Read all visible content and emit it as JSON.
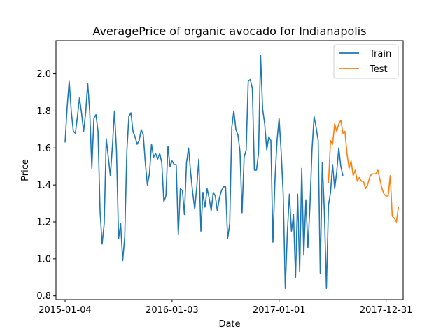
{
  "chart_data": {
    "type": "line",
    "title": "AveragePrice of organic avocado for Indianapolis",
    "xlabel": "Date",
    "ylabel": "Price",
    "xlim": [
      "2014-12-04",
      "2018-02-27"
    ],
    "ylim": [
      0.78,
      2.18
    ],
    "x_ticks": [
      "2015-01-04",
      "2016-01-03",
      "2017-01-01",
      "2017-12-31"
    ],
    "y_ticks": [
      0.8,
      1.0,
      1.2,
      1.4,
      1.6,
      1.8,
      2.0
    ],
    "y_tick_labels": [
      "0.8",
      "1.0",
      "1.2",
      "1.4",
      "1.6",
      "1.8",
      "2.0"
    ],
    "legend_position": "top-right",
    "grid": false,
    "series": [
      {
        "name": "Train",
        "color": "#1f77b4",
        "start": "2015-01-04",
        "freq": "weekly",
        "values": [
          1.63,
          1.82,
          1.96,
          1.8,
          1.69,
          1.68,
          1.77,
          1.87,
          1.79,
          1.69,
          1.79,
          1.95,
          1.79,
          1.49,
          1.76,
          1.78,
          1.69,
          1.26,
          1.08,
          1.19,
          1.65,
          1.55,
          1.45,
          1.61,
          1.8,
          1.58,
          1.11,
          1.19,
          0.99,
          1.12,
          1.58,
          1.77,
          1.79,
          1.69,
          1.66,
          1.62,
          1.64,
          1.7,
          1.67,
          1.52,
          1.4,
          1.46,
          1.62,
          1.55,
          1.57,
          1.54,
          1.57,
          1.52,
          1.31,
          1.34,
          1.61,
          1.5,
          1.53,
          1.51,
          1.51,
          1.13,
          1.38,
          1.37,
          1.24,
          1.52,
          1.6,
          1.47,
          1.36,
          1.27,
          1.39,
          1.54,
          1.15,
          1.36,
          1.28,
          1.38,
          1.33,
          1.26,
          1.36,
          1.34,
          1.26,
          1.33,
          1.37,
          1.39,
          1.39,
          1.11,
          1.19,
          1.71,
          1.8,
          1.7,
          1.67,
          1.58,
          1.25,
          1.55,
          1.59,
          1.96,
          1.97,
          1.92,
          1.48,
          1.48,
          1.57,
          2.1,
          1.81,
          1.73,
          1.59,
          1.66,
          1.64,
          1.09,
          1.43,
          1.64,
          1.76,
          1.58,
          1.35,
          0.84,
          1.14,
          1.35,
          1.15,
          1.24,
          0.9,
          1.35,
          0.93,
          1.49,
          1.02,
          1.32,
          1.06,
          1.29,
          1.59,
          1.77,
          1.71,
          1.64,
          0.92,
          1.52,
          1.26,
          0.84,
          1.29,
          1.36,
          1.51,
          1.38,
          1.47,
          1.6,
          1.5,
          1.45
        ]
      },
      {
        "name": "Test",
        "color": "#ff7f0e",
        "start": "2017-06-18",
        "freq": "weekly",
        "values": [
          1.41,
          1.64,
          1.62,
          1.73,
          1.69,
          1.73,
          1.75,
          1.68,
          1.69,
          1.57,
          1.49,
          1.53,
          1.45,
          1.48,
          1.42,
          1.44,
          1.42,
          1.42,
          1.38,
          1.4,
          1.44,
          1.46,
          1.46,
          1.46,
          1.48,
          1.43,
          1.38,
          1.35,
          1.34,
          1.34,
          1.45,
          1.23,
          1.22,
          1.2,
          1.28
        ]
      }
    ]
  }
}
